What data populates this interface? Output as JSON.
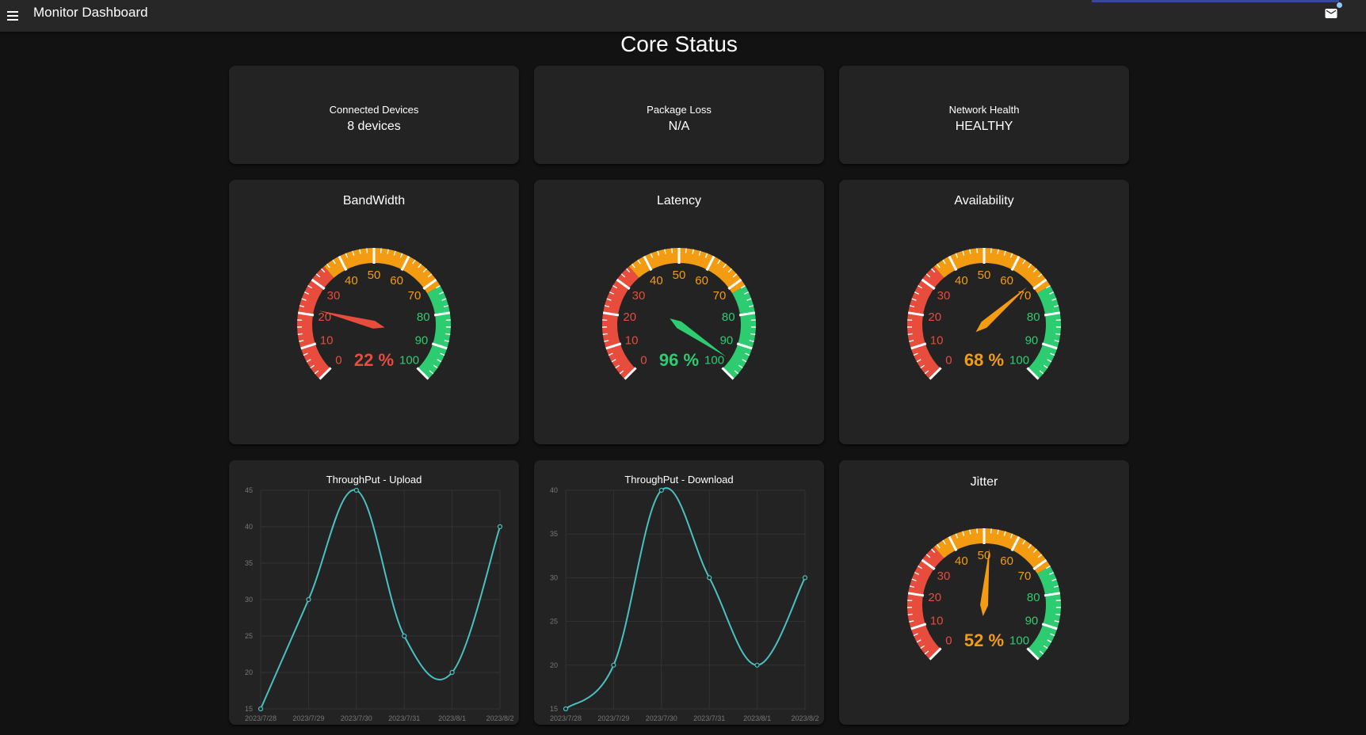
{
  "appbar": {
    "title": "Monitor Dashboard",
    "menu_icon": "menu-icon",
    "mail_icon": "mail-icon"
  },
  "page": {
    "title": "Core Status"
  },
  "stats": [
    {
      "label": "Connected Devices",
      "value": "8 devices"
    },
    {
      "label": "Package Loss",
      "value": "N/A"
    },
    {
      "label": "Network Health",
      "value": "HEALTHY"
    }
  ],
  "gauges": [
    {
      "title": "BandWidth",
      "value": 22,
      "readout": "22 %",
      "color": "#e74c3c"
    },
    {
      "title": "Latency",
      "value": 96,
      "readout": "96 %",
      "color": "#2ecc71"
    },
    {
      "title": "Availability",
      "value": 68,
      "readout": "68 %",
      "color": "#f39c12"
    },
    {
      "title": "Jitter",
      "value": 52,
      "readout": "52 %",
      "color": "#f39c12"
    }
  ],
  "gauge_scale": {
    "labels": [
      "0",
      "10",
      "20",
      "30",
      "40",
      "50",
      "60",
      "70",
      "80",
      "90",
      "100"
    ],
    "zones": [
      {
        "from": 0,
        "to": 35,
        "color": "#e74c3c"
      },
      {
        "from": 35,
        "to": 72,
        "color": "#f39c12"
      },
      {
        "from": 72,
        "to": 100,
        "color": "#2ecc71"
      }
    ]
  },
  "chart_data": [
    {
      "type": "line",
      "title": "ThroughPut - Upload",
      "x": [
        "2023/7/28",
        "2023/7/29",
        "2023/7/30",
        "2023/7/31",
        "2023/8/1",
        "2023/8/2"
      ],
      "series": [
        {
          "values": [
            15,
            30,
            45,
            25,
            20,
            40
          ]
        }
      ],
      "yticks": [
        "15",
        "20",
        "25",
        "30",
        "35",
        "40",
        "45"
      ],
      "ylim": [
        15,
        45
      ],
      "grid": true,
      "color": "#4bc0c0"
    },
    {
      "type": "line",
      "title": "ThroughPut - Download",
      "x": [
        "2023/7/28",
        "2023/7/29",
        "2023/7/30",
        "2023/7/31",
        "2023/8/1",
        "2023/8/2"
      ],
      "series": [
        {
          "values": [
            15,
            20,
            40,
            30,
            20,
            30
          ]
        }
      ],
      "yticks": [
        "15",
        "20",
        "25",
        "30",
        "35",
        "40"
      ],
      "ylim": [
        15,
        40
      ],
      "grid": true,
      "color": "#4bc0c0"
    }
  ]
}
